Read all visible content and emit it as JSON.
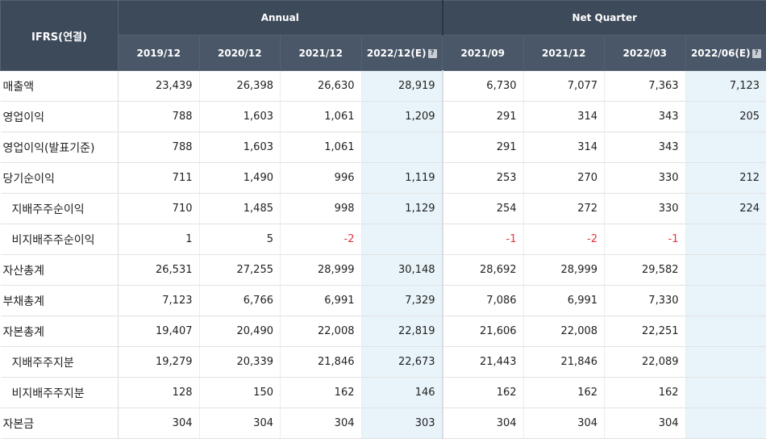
{
  "header": {
    "label_col": "IFRS(연결)",
    "groups": [
      {
        "label": "Annual",
        "span": 4
      },
      {
        "label": "Net Quarter",
        "span": 4
      }
    ],
    "columns": [
      {
        "label": "2019/12",
        "estimate": false
      },
      {
        "label": "2020/12",
        "estimate": false
      },
      {
        "label": "2021/12",
        "estimate": false
      },
      {
        "label": "2022/12(E)",
        "estimate": true
      },
      {
        "label": "2021/09",
        "estimate": false
      },
      {
        "label": "2021/12",
        "estimate": false
      },
      {
        "label": "2022/03",
        "estimate": false
      },
      {
        "label": "2022/06(E)",
        "estimate": true
      }
    ],
    "help_icon": "?"
  },
  "rows": [
    {
      "label": "매출액",
      "indent": false,
      "values": [
        "23,439",
        "26,398",
        "26,630",
        "28,919",
        "6,730",
        "7,077",
        "7,363",
        "7,123"
      ]
    },
    {
      "label": "영업이익",
      "indent": false,
      "values": [
        "788",
        "1,603",
        "1,061",
        "1,209",
        "291",
        "314",
        "343",
        "205"
      ]
    },
    {
      "label": "영업이익(발표기준)",
      "indent": false,
      "values": [
        "788",
        "1,603",
        "1,061",
        "",
        "291",
        "314",
        "343",
        ""
      ]
    },
    {
      "label": "당기순이익",
      "indent": false,
      "values": [
        "711",
        "1,490",
        "996",
        "1,119",
        "253",
        "270",
        "330",
        "212"
      ]
    },
    {
      "label": "지배주주순이익",
      "indent": true,
      "values": [
        "710",
        "1,485",
        "998",
        "1,129",
        "254",
        "272",
        "330",
        "224"
      ]
    },
    {
      "label": "비지배주주순이익",
      "indent": true,
      "values": [
        "1",
        "5",
        "-2",
        "",
        "-1",
        "-2",
        "-1",
        ""
      ]
    },
    {
      "label": "자산총계",
      "indent": false,
      "values": [
        "26,531",
        "27,255",
        "28,999",
        "30,148",
        "28,692",
        "28,999",
        "29,582",
        ""
      ]
    },
    {
      "label": "부채총계",
      "indent": false,
      "values": [
        "7,123",
        "6,766",
        "6,991",
        "7,329",
        "7,086",
        "6,991",
        "7,330",
        ""
      ]
    },
    {
      "label": "자본총계",
      "indent": false,
      "values": [
        "19,407",
        "20,490",
        "22,008",
        "22,819",
        "21,606",
        "22,008",
        "22,251",
        ""
      ]
    },
    {
      "label": "지배주주지분",
      "indent": true,
      "values": [
        "19,279",
        "20,339",
        "21,846",
        "22,673",
        "21,443",
        "21,846",
        "22,089",
        ""
      ]
    },
    {
      "label": "비지배주주지분",
      "indent": true,
      "values": [
        "128",
        "150",
        "162",
        "146",
        "162",
        "162",
        "162",
        ""
      ]
    },
    {
      "label": "자본금",
      "indent": false,
      "values": [
        "304",
        "304",
        "304",
        "303",
        "304",
        "304",
        "304",
        ""
      ]
    }
  ],
  "colors": {
    "header_bg": "#3d4a5a",
    "estimate_bg": "#e8f4fa",
    "negative": "#e8343b"
  }
}
